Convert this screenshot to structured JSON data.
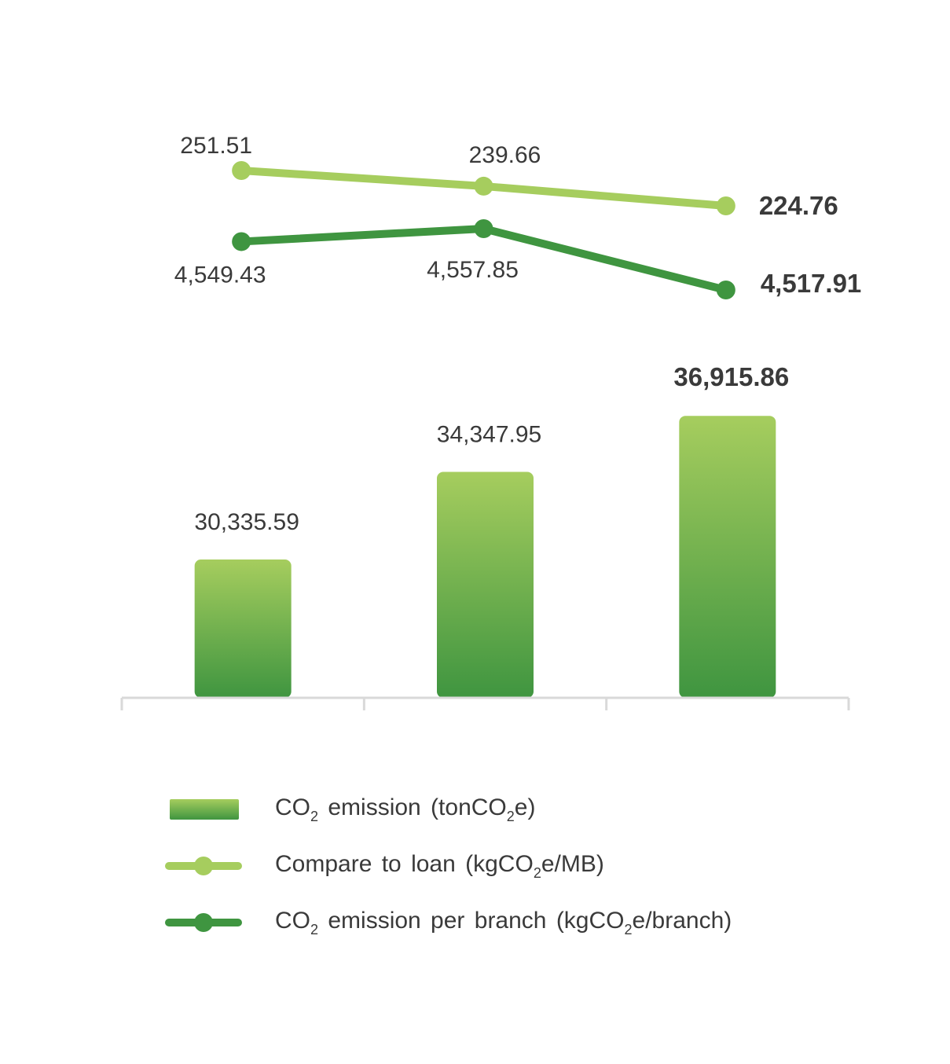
{
  "chart_data": {
    "type": "bar",
    "categories": [
      "",
      "",
      ""
    ],
    "series": [
      {
        "name": "CO2 emission (tonCO2e)",
        "type": "bar",
        "values": [
          30335.59,
          34347.95,
          36915.86
        ],
        "labels": [
          "30,335.59",
          "34,347.95",
          "36,915.86"
        ]
      },
      {
        "name": "Compare to loan (kgCO2e/MB)",
        "type": "line",
        "values": [
          251.51,
          239.66,
          224.76
        ],
        "labels": [
          "251.51",
          "239.66",
          "224.76"
        ]
      },
      {
        "name": "CO2 emission per branch (kgCO2e/branch)",
        "type": "line",
        "values": [
          4549.43,
          4557.85,
          4517.91
        ],
        "labels": [
          "4,549.43",
          "4,557.85",
          "4,517.91"
        ]
      }
    ],
    "colors": {
      "bar_top": "#a6cd5e",
      "bar_bottom": "#3f9540",
      "loan_line": "#a6cd5e",
      "branch_line": "#3f9540",
      "axis": "#d9d9d9",
      "text": "#3a3a3a"
    },
    "grid": false,
    "legend_position": "bottom"
  },
  "legend": {
    "bar": {
      "pre": "CO",
      "sub": "2",
      "mid": " emission (tonCO",
      "sub2": "2",
      "post": "e)"
    },
    "loan": {
      "pre": "Compare to loan (kgCO",
      "sub": "2",
      "post": "e/MB)"
    },
    "branch": {
      "pre": "CO",
      "sub": "2",
      "mid": " emission per branch (kgCO",
      "sub2": "2",
      "post": "e/branch)"
    }
  }
}
